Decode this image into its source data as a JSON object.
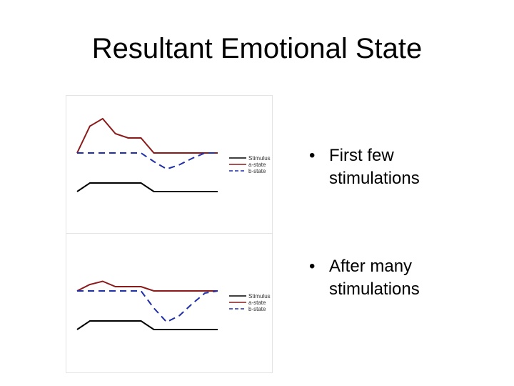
{
  "slide": {
    "title": "Resultant Emotional State",
    "bullets": [
      {
        "marker": "•",
        "text": "First few stimulations"
      },
      {
        "marker": "•",
        "text": "After many stimulations"
      }
    ]
  },
  "colors": {
    "stimulus": "#000000",
    "a_state": "#8b1a1a",
    "b_state": "#1f2fa8",
    "panel_border": "#e3e3e3"
  },
  "chart_data": [
    {
      "type": "line",
      "title": "",
      "xlabel": "",
      "ylabel": "",
      "grid": false,
      "legend_position": "right",
      "x": [
        0,
        1,
        2,
        3,
        4,
        5,
        6,
        7,
        8,
        9,
        10,
        11
      ],
      "series": [
        {
          "name": "Stimulus",
          "style": "solid",
          "color": "#000000",
          "values": [
            -3.6,
            -2.8,
            -2.8,
            -2.8,
            -2.8,
            -2.8,
            -3.6,
            -3.6,
            -3.6,
            -3.6,
            -3.6,
            -3.6
          ]
        },
        {
          "name": "a-state",
          "style": "solid",
          "color": "#8b1a1a",
          "values": [
            0,
            2.5,
            3.2,
            1.8,
            1.4,
            1.4,
            0,
            0,
            0,
            0,
            0,
            0
          ]
        },
        {
          "name": "b-state",
          "style": "dashed",
          "color": "#1f2fa8",
          "values": [
            0,
            0,
            0,
            0,
            0,
            0,
            -0.8,
            -1.5,
            -1.1,
            -0.5,
            0,
            0
          ]
        }
      ]
    },
    {
      "type": "line",
      "title": "",
      "xlabel": "",
      "ylabel": "",
      "grid": false,
      "legend_position": "right",
      "x": [
        0,
        1,
        2,
        3,
        4,
        5,
        6,
        7,
        8,
        9,
        10,
        11
      ],
      "series": [
        {
          "name": "Stimulus",
          "style": "solid",
          "color": "#000000",
          "values": [
            -3.6,
            -2.8,
            -2.8,
            -2.8,
            -2.8,
            -2.8,
            -3.6,
            -3.6,
            -3.6,
            -3.6,
            -3.6,
            -3.6
          ]
        },
        {
          "name": "a-state",
          "style": "solid",
          "color": "#8b1a1a",
          "values": [
            0,
            0.6,
            0.9,
            0.4,
            0.4,
            0.4,
            0,
            0,
            0,
            0,
            0,
            0
          ]
        },
        {
          "name": "b-state",
          "style": "dashed",
          "color": "#1f2fa8",
          "values": [
            0,
            0,
            0,
            0,
            0,
            0,
            -1.6,
            -2.9,
            -2.3,
            -1.2,
            -0.2,
            0
          ]
        }
      ]
    }
  ]
}
